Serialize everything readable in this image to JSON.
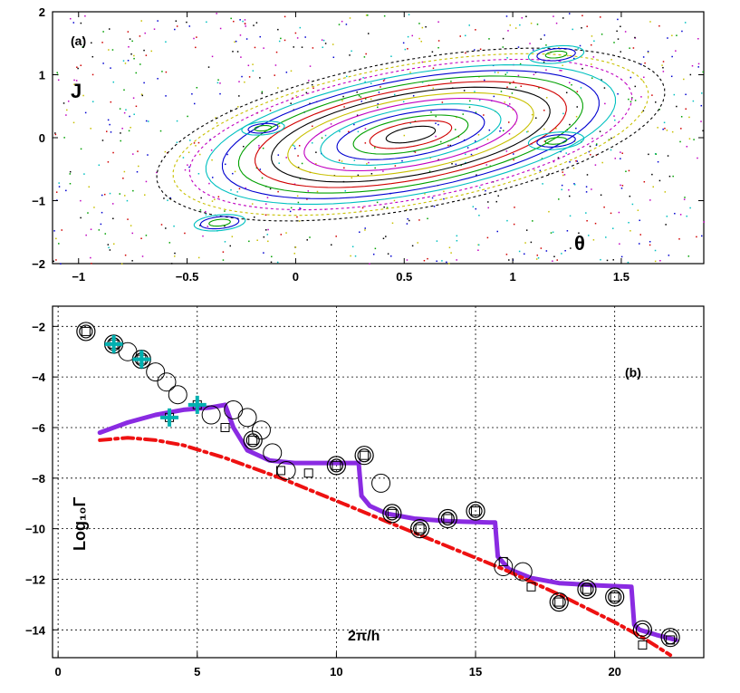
{
  "chart_data": [
    {
      "id": "a",
      "type": "scatter",
      "panel_label": "(a)",
      "xlabel": "θ",
      "ylabel": "J",
      "xlim": [
        -1.12,
        1.88
      ],
      "ylim": [
        -2,
        2
      ],
      "xticks": [
        -1,
        -0.5,
        0,
        0.5,
        1,
        1.5
      ],
      "xtick_labels": [
        "−1",
        "−0.5",
        "0",
        "0.5",
        "1",
        "1.5"
      ],
      "yticks": [
        -2,
        -1,
        0,
        1,
        2
      ],
      "ytick_labels": [
        "−2",
        "−1",
        "0",
        "1",
        "2"
      ],
      "grid": false,
      "tori_center": [
        0.53,
        0.05
      ],
      "tori_radii_a": [
        0.12,
        0.2,
        0.28,
        0.36,
        0.44,
        0.52,
        0.6,
        0.68,
        0.76,
        0.84,
        0.92,
        1.0,
        1.08,
        1.16,
        1.24
      ],
      "tori_aspect": 1.05,
      "tori_tilt_deg": 23,
      "islands": [
        {
          "center": [
            1.2,
            1.32
          ],
          "radii_a": [
            0.05,
            0.09,
            0.13
          ]
        },
        {
          "center": [
            1.2,
            -0.05
          ],
          "radii_a": [
            0.05,
            0.09,
            0.13
          ]
        },
        {
          "center": [
            -0.15,
            0.15
          ],
          "radii_a": [
            0.04,
            0.07,
            0.1
          ]
        },
        {
          "center": [
            -0.35,
            -1.35
          ],
          "radii_a": [
            0.05,
            0.09,
            0.12
          ]
        }
      ],
      "colors": [
        "#000000",
        "#d00000",
        "#00a000",
        "#0000d0",
        "#00c0c0",
        "#c000c0",
        "#c8c000"
      ]
    },
    {
      "id": "b",
      "type": "line",
      "panel_label": "(b)",
      "xlabel": "2π/h",
      "ylabel": "Log₁₀Γ",
      "xlim": [
        -0.2,
        23.2
      ],
      "ylim": [
        -15.1,
        -1.2
      ],
      "xticks": [
        0,
        5,
        10,
        15,
        20
      ],
      "xtick_labels": [
        "0",
        "5",
        "10",
        "15",
        "20"
      ],
      "yticks": [
        -14,
        -12,
        -10,
        -8,
        -6,
        -4,
        -2
      ],
      "ytick_labels": [
        "−14",
        "−12",
        "−10",
        "−8",
        "−6",
        "−4",
        "−2"
      ],
      "grid": true,
      "series": [
        {
          "name": "exact (double circle)",
          "marker": "double-circle",
          "color": "#000000",
          "x": [
            1,
            2,
            3,
            7,
            10,
            11,
            12,
            13,
            14,
            15,
            18,
            19,
            20,
            21,
            22
          ],
          "y": [
            -2.2,
            -2.7,
            -3.3,
            -6.5,
            -7.5,
            -7.1,
            -9.4,
            -10,
            -9.6,
            -9.3,
            -12.9,
            -12.4,
            -12.7,
            -14,
            -14.3
          ]
        },
        {
          "name": "circle",
          "marker": "circle",
          "color": "#000000",
          "x": [
            2.5,
            3.5,
            3.9,
            4.3,
            5.5,
            6.3,
            6.8,
            7.3,
            7.7,
            8.2,
            11.6,
            16,
            16.7
          ],
          "y": [
            -3,
            -3.8,
            -4.2,
            -4.7,
            -5.5,
            -5.3,
            -5.6,
            -6.1,
            -7,
            -7.7,
            -8.2,
            -11.5,
            -11.7
          ]
        },
        {
          "name": "square",
          "marker": "square",
          "color": "#000000",
          "x": [
            1,
            2,
            3,
            4,
            5,
            6,
            7,
            8,
            9,
            10,
            11,
            12,
            13,
            14,
            15,
            16,
            17,
            18,
            19,
            20,
            21,
            22
          ],
          "y": [
            -2.2,
            -2.7,
            -3.3,
            -5.6,
            -5.1,
            -6,
            -6.5,
            -7.7,
            -7.8,
            -7.5,
            -7.1,
            -9.4,
            -10,
            -9.6,
            -9.3,
            -11.3,
            -12.3,
            -12.9,
            -12.4,
            -12.7,
            -14.6,
            -14.4
          ]
        },
        {
          "name": "cross",
          "marker": "cross",
          "color": "#00b0b0",
          "x": [
            2,
            3,
            4,
            5
          ],
          "y": [
            -2.7,
            -3.3,
            -5.6,
            -5.1
          ]
        },
        {
          "name": "staircase",
          "marker": "none",
          "style": "solid",
          "color": "#8a2be2",
          "x": [
            1.5,
            2.5,
            3.5,
            4.5,
            5.5,
            6.0,
            6.3,
            6.8,
            7.6,
            8.5,
            9.5,
            10.8,
            10.9,
            11.2,
            11.8,
            12.8,
            14,
            15.5,
            15.7,
            15.8,
            16.2,
            17,
            18,
            19.5,
            20.6,
            20.7,
            20.9,
            21.5,
            22.2
          ],
          "y": [
            -6.2,
            -5.8,
            -5.5,
            -5.3,
            -5.2,
            -5.1,
            -6.0,
            -6.9,
            -7.3,
            -7.4,
            -7.4,
            -7.4,
            -8.7,
            -9.1,
            -9.4,
            -9.6,
            -9.7,
            -9.75,
            -9.75,
            -11.1,
            -11.6,
            -11.95,
            -12.15,
            -12.25,
            -12.3,
            -13.8,
            -14.0,
            -14.2,
            -14.4
          ]
        },
        {
          "name": "dash-dot",
          "marker": "none",
          "style": "dashdot",
          "color": "#ee1111",
          "x": [
            1.5,
            2.5,
            3.5,
            4.5,
            6,
            8,
            10,
            12,
            14,
            16,
            18,
            20,
            21,
            22
          ],
          "y": [
            -6.5,
            -6.4,
            -6.5,
            -6.7,
            -7.2,
            -8,
            -8.9,
            -9.8,
            -10.7,
            -11.6,
            -12.6,
            -13.7,
            -14.3,
            -15.0
          ]
        }
      ]
    }
  ]
}
